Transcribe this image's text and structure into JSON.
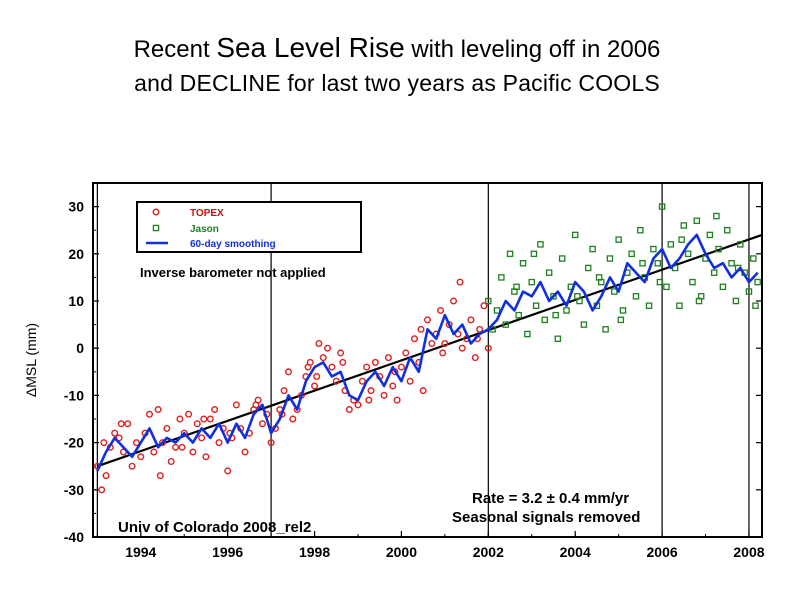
{
  "slide": {
    "title_part1": "Recent ",
    "title_part2": "Sea Level Rise",
    "title_part3": " with leveling off in 2006",
    "title_line2": "and DECLINE for last two years as Pacific COOLS"
  },
  "chart_data": {
    "type": "scatter",
    "title": "",
    "xlabel": "",
    "ylabel": "ΔMSL (mm)",
    "xlim": [
      1992.9,
      2008.3
    ],
    "ylim": [
      -40,
      35
    ],
    "x_ticks": [
      "1994",
      "1996",
      "1998",
      "2000",
      "2002",
      "2004",
      "2006",
      "2008"
    ],
    "y_ticks": [
      "30",
      "20",
      "10",
      "0",
      "-10",
      "-20",
      "-30",
      "-40"
    ],
    "vertical_lines": [
      1993,
      1997,
      2002,
      2006,
      2008
    ],
    "legend": {
      "position": "top-left",
      "entries": [
        {
          "label": "TOPEX",
          "marker": "circle",
          "color": "#e02020"
        },
        {
          "label": "Jason",
          "marker": "square",
          "color": "#208020"
        },
        {
          "label": "60-day smoothing",
          "marker": "line",
          "color": "#1030e0"
        }
      ]
    },
    "annotations": {
      "inverse_barometer": "Inverse barometer not applied",
      "rate": "Rate = 3.2 ± 0.4 mm/yr",
      "seasonal": "Seasonal signals removed",
      "source": "Univ of Colorado 2008_rel2"
    },
    "trend": {
      "x": [
        1993.0,
        2008.3
      ],
      "y": [
        -25.0,
        24.0
      ],
      "color": "#000000"
    },
    "series": [
      {
        "name": "TOPEX",
        "color": "#e02020",
        "x": [
          1993.0,
          1993.1,
          1993.2,
          1993.3,
          1993.4,
          1993.5,
          1993.6,
          1993.7,
          1993.8,
          1993.9,
          1994.0,
          1994.1,
          1994.2,
          1994.3,
          1994.4,
          1994.5,
          1994.6,
          1994.7,
          1994.8,
          1994.9,
          1995.0,
          1995.1,
          1995.2,
          1995.3,
          1995.4,
          1995.5,
          1995.6,
          1995.7,
          1995.8,
          1995.9,
          1996.0,
          1996.1,
          1996.2,
          1996.3,
          1996.4,
          1996.5,
          1996.6,
          1996.7,
          1996.8,
          1996.9,
          1997.0,
          1997.1,
          1997.2,
          1997.3,
          1997.4,
          1997.5,
          1997.6,
          1997.7,
          1997.8,
          1997.9,
          1998.0,
          1998.1,
          1998.2,
          1998.3,
          1998.4,
          1998.5,
          1998.6,
          1998.7,
          1998.8,
          1998.9,
          1999.0,
          1999.1,
          1999.2,
          1999.3,
          1999.4,
          1999.5,
          1999.6,
          1999.7,
          1999.8,
          1999.9,
          2000.0,
          2000.1,
          2000.2,
          2000.3,
          2000.4,
          2000.5,
          2000.6,
          2000.7,
          2000.8,
          2000.9,
          2001.0,
          2001.1,
          2001.2,
          2001.3,
          2001.4,
          2001.5,
          2001.6,
          2001.7,
          2001.8,
          2001.9,
          2002.0,
          1993.15,
          1993.55,
          1994.45,
          1994.95,
          1995.45,
          1996.05,
          1996.65,
          1997.25,
          1997.85,
          1998.05,
          1998.65,
          1999.25,
          1999.85,
          2000.45,
          2000.95,
          2001.35,
          2001.75
        ],
        "y": [
          -25,
          -30,
          -27,
          -21,
          -18,
          -19,
          -22,
          -16,
          -25,
          -20,
          -23,
          -18,
          -14,
          -22,
          -13,
          -20,
          -17,
          -24,
          -21,
          -15,
          -18,
          -14,
          -22,
          -16,
          -19,
          -23,
          -15,
          -13,
          -20,
          -17,
          -26,
          -19,
          -12,
          -17,
          -22,
          -18,
          -13,
          -11,
          -16,
          -14,
          -20,
          -17,
          -13,
          -9,
          -5,
          -15,
          -13,
          -10,
          -6,
          -3,
          -8,
          1,
          -2,
          0,
          -4,
          -7,
          -1,
          -9,
          -13,
          -11,
          -12,
          -7,
          -4,
          -9,
          -3,
          -6,
          -10,
          -2,
          -8,
          -11,
          -4,
          -1,
          -7,
          2,
          -3,
          -9,
          6,
          1,
          3,
          8,
          1,
          5,
          10,
          3,
          0,
          2,
          6,
          -2,
          4,
          9,
          0,
          -20,
          -16,
          -27,
          -21,
          -15,
          -18,
          -12,
          -14,
          -4,
          -6,
          -3,
          -11,
          -5,
          4,
          -1,
          14,
          2
        ]
      },
      {
        "name": "Jason",
        "color": "#208020",
        "x": [
          2002.0,
          2002.1,
          2002.2,
          2002.3,
          2002.4,
          2002.5,
          2002.6,
          2002.7,
          2002.8,
          2002.9,
          2003.0,
          2003.1,
          2003.2,
          2003.3,
          2003.4,
          2003.5,
          2003.6,
          2003.7,
          2003.8,
          2003.9,
          2004.0,
          2004.1,
          2004.2,
          2004.3,
          2004.4,
          2004.5,
          2004.6,
          2004.7,
          2004.8,
          2004.9,
          2005.0,
          2005.1,
          2005.2,
          2005.3,
          2005.4,
          2005.5,
          2005.6,
          2005.7,
          2005.8,
          2005.9,
          2006.0,
          2006.1,
          2006.2,
          2006.3,
          2006.4,
          2006.5,
          2006.6,
          2006.7,
          2006.8,
          2006.9,
          2007.0,
          2007.1,
          2007.2,
          2007.3,
          2007.4,
          2007.5,
          2007.6,
          2007.7,
          2007.8,
          2007.9,
          2008.0,
          2008.1,
          2008.2,
          2002.65,
          2003.05,
          2003.55,
          2004.05,
          2004.55,
          2005.05,
          2005.55,
          2005.95,
          2006.45,
          2006.85,
          2007.25,
          2007.75,
          2008.15
        ],
        "y": [
          10,
          4,
          8,
          15,
          5,
          20,
          12,
          7,
          18,
          3,
          14,
          9,
          22,
          6,
          16,
          11,
          2,
          19,
          8,
          13,
          24,
          10,
          5,
          17,
          21,
          9,
          14,
          4,
          19,
          12,
          23,
          8,
          16,
          20,
          11,
          25,
          15,
          9,
          21,
          18,
          30,
          13,
          22,
          17,
          9,
          26,
          20,
          14,
          27,
          11,
          19,
          24,
          16,
          21,
          13,
          25,
          18,
          10,
          22,
          16,
          12,
          19,
          14,
          13,
          20,
          7,
          11,
          15,
          6,
          18,
          14,
          23,
          10,
          28,
          17,
          9
        ],
        "y_extra_note": ""
      },
      {
        "name": "60-day smoothing",
        "color": "#1030e0",
        "x": [
          1993.0,
          1993.2,
          1993.4,
          1993.6,
          1993.8,
          1994.0,
          1994.2,
          1994.4,
          1994.6,
          1994.8,
          1995.0,
          1995.2,
          1995.4,
          1995.6,
          1995.8,
          1996.0,
          1996.2,
          1996.4,
          1996.6,
          1996.8,
          1997.0,
          1997.2,
          1997.4,
          1997.6,
          1997.8,
          1998.0,
          1998.2,
          1998.4,
          1998.6,
          1998.8,
          1999.0,
          1999.2,
          1999.4,
          1999.6,
          1999.8,
          2000.0,
          2000.2,
          2000.4,
          2000.6,
          2000.8,
          2001.0,
          2001.2,
          2001.4,
          2001.6,
          2001.8,
          2002.0,
          2002.2,
          2002.4,
          2002.6,
          2002.8,
          2003.0,
          2003.2,
          2003.4,
          2003.6,
          2003.8,
          2004.0,
          2004.2,
          2004.4,
          2004.6,
          2004.8,
          2005.0,
          2005.2,
          2005.4,
          2005.6,
          2005.8,
          2006.0,
          2006.2,
          2006.4,
          2006.6,
          2006.8,
          2007.0,
          2007.2,
          2007.4,
          2007.6,
          2007.8,
          2008.0,
          2008.2
        ],
        "y": [
          -26,
          -22,
          -19,
          -21,
          -23,
          -20,
          -17,
          -21,
          -19,
          -20,
          -18,
          -20,
          -17,
          -19,
          -16,
          -20,
          -16,
          -19,
          -14,
          -12,
          -18,
          -15,
          -10,
          -13,
          -7,
          -4,
          -3,
          -6,
          -5,
          -10,
          -11,
          -7,
          -5,
          -8,
          -4,
          -7,
          -2,
          -5,
          4,
          2,
          7,
          3,
          5,
          1,
          3,
          4,
          6,
          10,
          8,
          12,
          11,
          14,
          10,
          12,
          9,
          14,
          12,
          8,
          11,
          15,
          12,
          18,
          16,
          14,
          19,
          21,
          17,
          19,
          22,
          24,
          20,
          17,
          18,
          15,
          17,
          14,
          16
        ]
      }
    ]
  }
}
